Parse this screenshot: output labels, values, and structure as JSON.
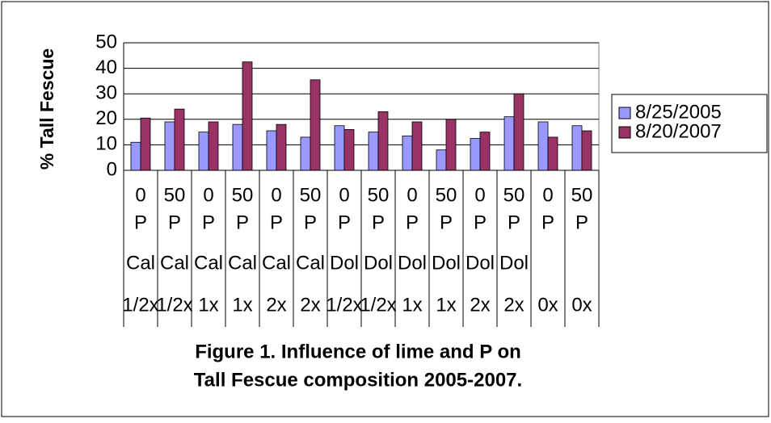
{
  "chart_data": {
    "type": "bar",
    "title": [
      "Figure 1. Influence of lime and P on",
      "Tall Fescue composition 2005-2007."
    ],
    "y_label": "% Tall Fescue",
    "categories": [
      [
        "0",
        "P",
        "Cal",
        "1/2x"
      ],
      [
        "50",
        "P",
        "Cal",
        "1/2x"
      ],
      [
        "0",
        "P",
        "Cal",
        "1x"
      ],
      [
        "50",
        "P",
        "Cal",
        "1x"
      ],
      [
        "0",
        "P",
        "Cal",
        "2x"
      ],
      [
        "50",
        "P",
        "Cal",
        "2x"
      ],
      [
        "0",
        "P",
        "Dol",
        "1/2x"
      ],
      [
        "50",
        "P",
        "Dol",
        "1/2x"
      ],
      [
        "0",
        "P",
        "Dol",
        "1x"
      ],
      [
        "50",
        "P",
        "Dol",
        "1x"
      ],
      [
        "0",
        "P",
        "Dol",
        "2x"
      ],
      [
        "50",
        "P",
        "Dol",
        "2x"
      ],
      [
        "0",
        "P",
        null,
        "0x"
      ],
      [
        "50",
        "P",
        null,
        "0x"
      ]
    ],
    "series": [
      {
        "name": "8/25/2005",
        "color": "#9999ff",
        "values": [
          11,
          19,
          15,
          18,
          15.5,
          13,
          17.5,
          15,
          13.5,
          8,
          12.5,
          21,
          19,
          17.5
        ]
      },
      {
        "name": "8/20/2007",
        "color": "#993366",
        "values": [
          20.5,
          24,
          19,
          42.5,
          18,
          35.5,
          16,
          23,
          19,
          20,
          15,
          30,
          13,
          15.5
        ]
      }
    ],
    "ylim": [
      0,
      50
    ],
    "yticks": [
      0,
      10,
      20,
      30,
      40,
      50
    ],
    "grid": true,
    "legend": "right"
  }
}
